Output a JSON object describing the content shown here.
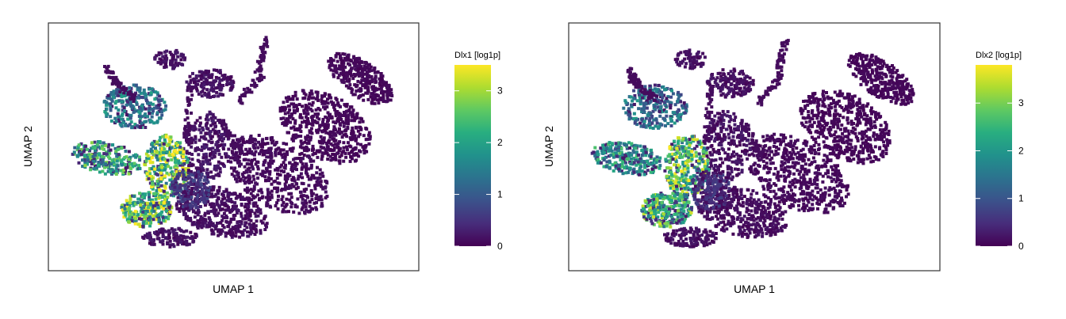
{
  "chart_data": [
    {
      "type": "hexbin-scatter",
      "gene": "Dlx1",
      "xlabel": "UMAP 1",
      "ylabel": "UMAP 2",
      "colorbar": {
        "label": "Dlx1 [log1p]",
        "colormap": "viridis",
        "range": [
          0,
          3.5
        ],
        "ticks": [
          0,
          1,
          2,
          3
        ]
      },
      "high_expression_regions": [
        {
          "region": "left lobe",
          "level": "high"
        },
        {
          "region": "lower-left lobe",
          "level": "high"
        },
        {
          "region": "central junction",
          "level": "highest"
        },
        {
          "region": "right arm",
          "level": "near 0"
        }
      ],
      "grid": false
    },
    {
      "type": "hexbin-scatter",
      "gene": "Dlx2",
      "xlabel": "UMAP 1",
      "ylabel": "UMAP 2",
      "colorbar": {
        "label": "Dlx2 [log1p]",
        "colormap": "viridis",
        "range": [
          0,
          3.8
        ],
        "ticks": [
          0,
          1,
          2,
          3
        ]
      },
      "high_expression_regions": [
        {
          "region": "left lobe",
          "level": "high"
        },
        {
          "region": "lower-left lobe",
          "level": "high"
        },
        {
          "region": "central junction",
          "level": "high"
        },
        {
          "region": "right arm",
          "level": "near 0"
        }
      ],
      "grid": false
    }
  ]
}
